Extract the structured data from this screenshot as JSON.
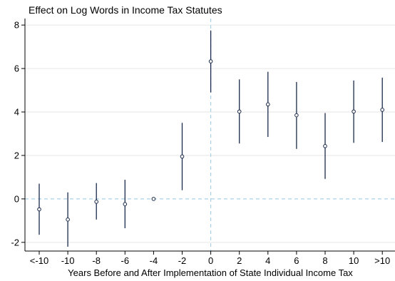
{
  "chart_data": {
    "type": "scatter",
    "subtype": "coefficient-plot-with-confidence-intervals",
    "title": "Effect on Log Words in Income Tax Statutes",
    "xlabel": "Years Before and After Implementation of State Individual Income Tax",
    "ylabel": "",
    "categories": [
      "<-10",
      "-10",
      "-8",
      "-6",
      "-4",
      "-2",
      "0",
      "2",
      "4",
      "6",
      "8",
      "10",
      ">10"
    ],
    "estimates": [
      -0.48,
      -0.95,
      -0.13,
      -0.24,
      0.0,
      1.95,
      6.33,
      4.02,
      4.35,
      3.85,
      2.43,
      4.02,
      4.1
    ],
    "ci_low": [
      -1.65,
      -2.2,
      -0.95,
      -1.35,
      0.0,
      0.4,
      4.9,
      2.55,
      2.85,
      2.3,
      0.92,
      2.58,
      2.62
    ],
    "ci_high": [
      0.7,
      0.3,
      0.73,
      0.88,
      0.0,
      3.5,
      7.75,
      5.5,
      5.85,
      5.38,
      3.95,
      5.45,
      5.58
    ],
    "yticks": [
      -2,
      0,
      2,
      4,
      6,
      8
    ],
    "ylim": [
      -2.4,
      8.3
    ],
    "reference_lines": {
      "y": 0,
      "x_category": "0",
      "style": "dashed",
      "color": "#a9d2e8"
    },
    "grid": true,
    "colors": {
      "marker": "#1a2a4a",
      "ci_line": "#1a2a4a",
      "grid": "#e6e6e6"
    }
  }
}
